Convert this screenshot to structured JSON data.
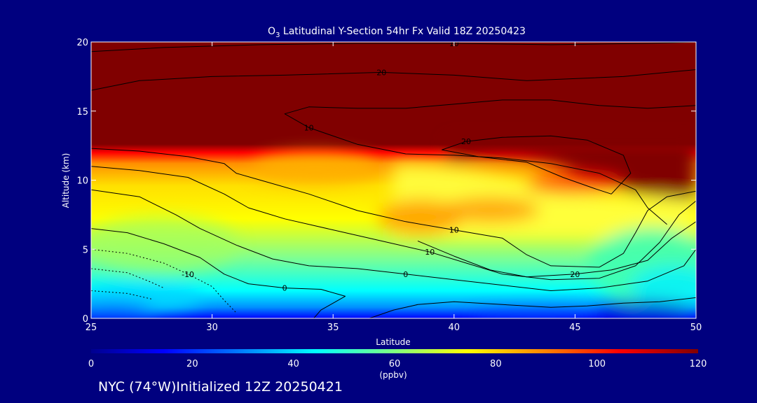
{
  "footer": {
    "text": "NYC (74°W)Initialized 12Z 20250421"
  },
  "chart_data": {
    "type": "heatmap",
    "title": "O3 Latitudinal Y-Section 54hr  Fx Valid 18Z 20250423",
    "title_species": "O",
    "title_subscript": "3",
    "title_rest": " Latitudinal Y-Section 54hr  Fx Valid 18Z 20250423",
    "xlabel": "Latitude",
    "ylabel": "Altitude (km)",
    "xlim": [
      25,
      50
    ],
    "ylim": [
      0,
      20
    ],
    "x_ticks": [
      25,
      30,
      35,
      40,
      45,
      50
    ],
    "y_ticks": [
      0,
      5,
      10,
      15,
      20
    ],
    "colorbar": {
      "label": "(ppbv)",
      "range": [
        0,
        120
      ],
      "ticks": [
        0,
        20,
        40,
        60,
        80,
        100,
        120
      ]
    },
    "colorscale": [
      "#0000ff",
      "#0080ff",
      "#00ffff",
      "#80ff80",
      "#ffff00",
      "#ff8000",
      "#ff0000",
      "#800000"
    ],
    "colors": {
      "background": "#00007f",
      "stratosphere": "#800000",
      "contour": "#000000"
    },
    "contours": [
      {
        "label": "10",
        "points": [
          [
            25,
            19.3
          ],
          [
            28,
            19.6
          ],
          [
            32,
            19.8
          ],
          [
            36,
            19.9
          ],
          [
            40,
            19.9
          ],
          [
            44,
            19.8
          ],
          [
            48,
            19.9
          ],
          [
            50,
            20
          ]
        ]
      },
      {
        "label": "20",
        "points": [
          [
            25,
            16.5
          ],
          [
            27,
            17.2
          ],
          [
            30,
            17.5
          ],
          [
            33,
            17.6
          ],
          [
            37,
            17.8
          ],
          [
            40,
            17.6
          ],
          [
            43,
            17.2
          ],
          [
            47,
            17.5
          ],
          [
            50,
            18
          ]
        ]
      },
      {
        "label": "10",
        "points": [
          [
            50,
            15.4
          ],
          [
            48,
            15.2
          ],
          [
            46,
            15.4
          ],
          [
            44,
            15.8
          ],
          [
            42,
            15.8
          ],
          [
            40,
            15.5
          ],
          [
            38,
            15.2
          ],
          [
            36,
            15.2
          ],
          [
            34,
            15.3
          ],
          [
            33,
            14.8
          ],
          [
            34,
            13.8
          ],
          [
            36,
            12.6
          ],
          [
            38,
            11.9
          ],
          [
            40,
            11.8
          ],
          [
            42,
            11.6
          ],
          [
            44,
            11.2
          ],
          [
            46,
            10.5
          ],
          [
            47.5,
            9.3
          ],
          [
            48,
            8.0
          ],
          [
            48.8,
            6.8
          ]
        ]
      },
      {
        "label": "20",
        "points": [
          [
            46.5,
            9.0
          ],
          [
            47.3,
            10.5
          ],
          [
            47,
            11.8
          ],
          [
            45.5,
            12.9
          ],
          [
            44,
            13.2
          ],
          [
            42,
            13.1
          ],
          [
            40.5,
            12.8
          ],
          [
            39.5,
            12.2
          ],
          [
            41,
            11.7
          ],
          [
            43,
            11.3
          ],
          [
            44.5,
            10.2
          ],
          [
            45.8,
            9.4
          ],
          [
            46.5,
            9.0
          ]
        ]
      },
      {
        "label": "10",
        "points": [
          [
            25,
            12.3
          ],
          [
            27,
            12.1
          ],
          [
            29,
            11.7
          ],
          [
            30.5,
            11.2
          ],
          [
            31,
            10.5
          ],
          [
            32,
            10.0
          ],
          [
            34,
            9.0
          ],
          [
            36,
            7.8
          ],
          [
            38,
            7.0
          ],
          [
            40,
            6.4
          ],
          [
            42,
            5.8
          ],
          [
            43,
            4.6
          ],
          [
            44,
            3.8
          ],
          [
            46,
            3.7
          ],
          [
            47,
            4.7
          ],
          [
            47.5,
            6.2
          ],
          [
            48,
            7.8
          ],
          [
            48.8,
            8.8
          ],
          [
            50,
            9.2
          ]
        ]
      },
      {
        "label": "10",
        "points": [
          [
            25,
            11.0
          ],
          [
            27,
            10.7
          ],
          [
            29,
            10.2
          ],
          [
            30.5,
            9.0
          ],
          [
            31.5,
            8.0
          ],
          [
            33,
            7.2
          ],
          [
            35,
            6.4
          ],
          [
            37,
            5.6
          ],
          [
            39,
            4.8
          ],
          [
            40.5,
            4.0
          ],
          [
            42,
            3.2
          ],
          [
            44,
            2.8
          ],
          [
            46,
            2.9
          ],
          [
            47.5,
            3.8
          ],
          [
            48.5,
            5.5
          ],
          [
            49.3,
            7.5
          ],
          [
            50,
            8.5
          ]
        ]
      },
      {
        "label": "20",
        "points": [
          [
            38.5,
            5.6
          ],
          [
            40,
            4.5
          ],
          [
            41.5,
            3.5
          ],
          [
            43,
            3.0
          ],
          [
            45,
            3.2
          ],
          [
            46.5,
            3.5
          ],
          [
            48,
            4.2
          ],
          [
            49,
            5.8
          ],
          [
            50,
            7.0
          ]
        ]
      },
      {
        "label": "0",
        "points": [
          [
            25,
            9.3
          ],
          [
            27,
            8.8
          ],
          [
            28.5,
            7.5
          ],
          [
            29.5,
            6.5
          ],
          [
            31,
            5.3
          ],
          [
            32.5,
            4.3
          ],
          [
            34,
            3.8
          ],
          [
            36,
            3.6
          ],
          [
            38,
            3.2
          ],
          [
            40,
            2.8
          ],
          [
            42,
            2.4
          ],
          [
            44,
            2.0
          ],
          [
            46,
            2.2
          ],
          [
            48,
            2.7
          ],
          [
            49.5,
            3.8
          ],
          [
            50,
            5.0
          ]
        ]
      },
      {
        "label": "0",
        "points": [
          [
            25,
            6.5
          ],
          [
            26.5,
            6.2
          ],
          [
            28,
            5.4
          ],
          [
            29.5,
            4.4
          ],
          [
            30.5,
            3.2
          ],
          [
            31.5,
            2.5
          ],
          [
            33,
            2.2
          ],
          [
            34.5,
            2.1
          ],
          [
            35.5,
            1.6
          ],
          [
            35,
            1.1
          ],
          [
            34.5,
            0.6
          ],
          [
            34.2,
            0
          ]
        ]
      },
      {
        "label": "",
        "points": [
          [
            36.5,
            0
          ],
          [
            37.5,
            0.6
          ],
          [
            38.5,
            1.0
          ],
          [
            40,
            1.2
          ],
          [
            42,
            1.0
          ],
          [
            44,
            0.8
          ],
          [
            45.5,
            0.9
          ],
          [
            47,
            1.1
          ],
          [
            48.5,
            1.2
          ],
          [
            50,
            1.5
          ]
        ]
      },
      {
        "label": "-10",
        "points": [
          [
            25,
            5.0
          ],
          [
            26.5,
            4.7
          ],
          [
            28,
            4.0
          ],
          [
            29,
            3.2
          ],
          [
            30,
            2.3
          ],
          [
            30.5,
            1.3
          ],
          [
            31,
            0.4
          ]
        ],
        "dashed": true
      },
      {
        "label": "",
        "points": [
          [
            25,
            3.6
          ],
          [
            26.5,
            3.3
          ],
          [
            27.5,
            2.6
          ],
          [
            28,
            2.2
          ]
        ],
        "dashed": true
      },
      {
        "label": "",
        "points": [
          [
            25,
            2.0
          ],
          [
            26.5,
            1.8
          ],
          [
            27.5,
            1.4
          ]
        ],
        "dashed": true
      }
    ]
  }
}
